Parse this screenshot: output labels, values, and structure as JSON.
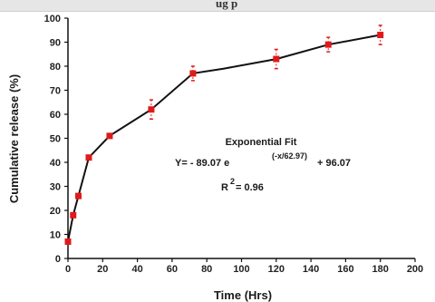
{
  "header": {
    "partial_title": "ug             p"
  },
  "chart_data": {
    "type": "line",
    "xlabel": "Time (Hrs)",
    "ylabel": "Cumulative release (%)",
    "xlim": [
      0,
      200
    ],
    "ylim": [
      0,
      100
    ],
    "xticks": [
      0,
      20,
      40,
      60,
      80,
      100,
      120,
      140,
      160,
      180,
      200
    ],
    "yticks": [
      0,
      10,
      20,
      30,
      40,
      50,
      60,
      70,
      80,
      90,
      100
    ],
    "grid": false,
    "marker": "square",
    "colors": {
      "line": "#111111",
      "marker": "#e01a1a"
    },
    "series": [
      {
        "x": [
          0,
          3,
          6,
          12,
          24,
          48,
          72,
          120,
          150,
          180
        ],
        "y": [
          7,
          18,
          26,
          42,
          51,
          62,
          77,
          83,
          89,
          93
        ],
        "error": [
          0,
          0,
          0,
          0,
          0,
          4,
          3,
          4,
          3,
          4
        ]
      }
    ],
    "fit_line": {
      "x": [
        0,
        3,
        6,
        12,
        24,
        48,
        72,
        90,
        120,
        150,
        180
      ],
      "y": [
        7,
        18,
        26,
        42,
        51,
        62,
        77,
        79,
        83,
        89,
        93
      ]
    },
    "annotation": {
      "title": "Exponential Fit",
      "eq_left": "Y= - 89.07 e",
      "eq_exp": "(-x/62.97)",
      "eq_right": "+ 96.07",
      "r2_label": "R",
      "r2_sup": "2",
      "r2_value": " = 0.96"
    }
  }
}
